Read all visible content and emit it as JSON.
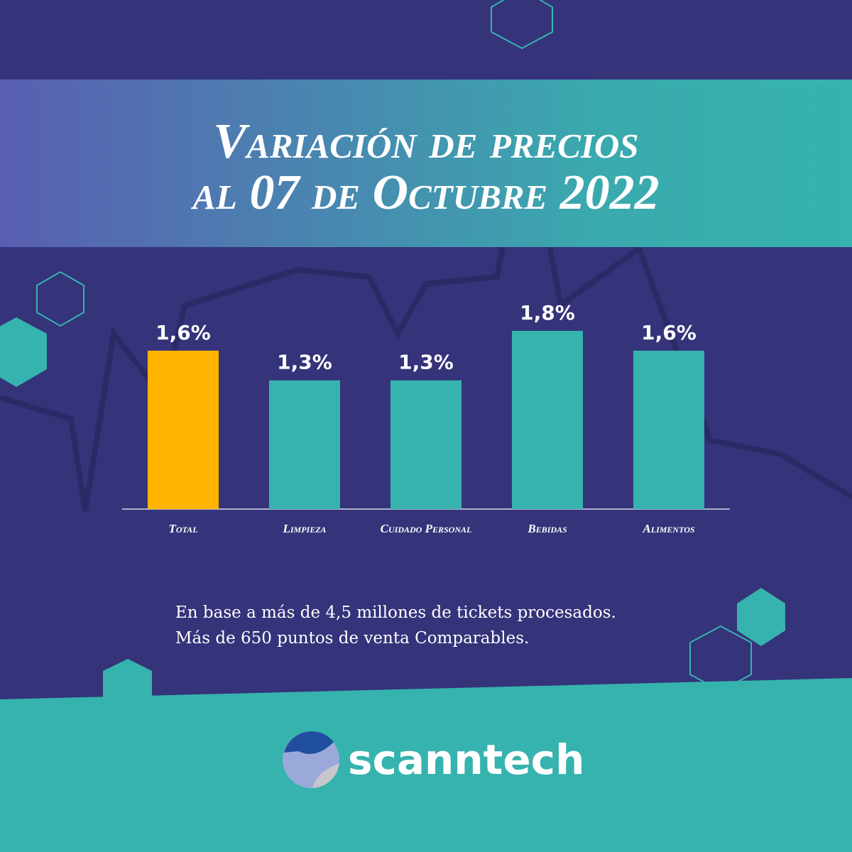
{
  "chart_data": {
    "type": "bar",
    "title": [
      "Variación de precios",
      "al 07 de Octubre 2022"
    ],
    "categories": [
      "Total",
      "Limpieza",
      "Cuidado Personal",
      "Bebidas",
      "Alimentos"
    ],
    "values": [
      1.6,
      1.3,
      1.3,
      1.8,
      1.6
    ],
    "value_labels": [
      "1,6%",
      "1,3%",
      "1,3%",
      "1,8%",
      "1,6%"
    ],
    "colors": [
      "#ffb400",
      "#36b3ae",
      "#36b3ae",
      "#36b3ae",
      "#36b3ae"
    ],
    "notes": [
      "En base a más de 4,5 millones de tickets procesados.",
      "Más de 650 puntos de venta Comparables."
    ],
    "brand": "scanntech"
  }
}
